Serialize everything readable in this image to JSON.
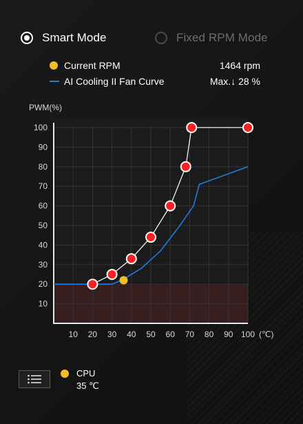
{
  "modes": {
    "smart_label": "Smart Mode",
    "fixed_label": "Fixed RPM Mode",
    "selected": "smart"
  },
  "legend": {
    "current_rpm_label": "Current RPM",
    "current_rpm_value": "1464 rpm",
    "curve_label": "AI Cooling II Fan Curve",
    "curve_value": "Max.↓ 28 %"
  },
  "sensor": {
    "name": "CPU",
    "temperature": "35 ℃"
  },
  "colors": {
    "accent_red": "#ff2020",
    "current_rpm_yellow": "#f0c020",
    "ai_curve_blue": "#1e7be0",
    "low_zone": "#3c2020"
  },
  "icons": {
    "menu_button": "list-menu-icon"
  },
  "chart_data": {
    "type": "line",
    "ylabel": "PWM(%)",
    "xlabel": "(℃)",
    "xlim": [
      0,
      100
    ],
    "ylim": [
      0,
      100
    ],
    "x_ticks": [
      "10",
      "20",
      "30",
      "40",
      "50",
      "60",
      "70",
      "80",
      "90",
      "100"
    ],
    "y_ticks": [
      "10",
      "20",
      "30",
      "40",
      "50",
      "60",
      "70",
      "80",
      "90",
      "100"
    ],
    "grid": true,
    "low_zone_max": 20,
    "series": [
      {
        "name": "Fan Curve",
        "role": "user",
        "points": [
          [
            20,
            20
          ],
          [
            30,
            25
          ],
          [
            40,
            33
          ],
          [
            50,
            44
          ],
          [
            60,
            60
          ],
          [
            68,
            80
          ],
          [
            71,
            100
          ],
          [
            100,
            100
          ]
        ],
        "left_extension_y": 20
      },
      {
        "name": "AI Cooling II Fan Curve",
        "role": "ai",
        "points": [
          [
            0,
            20
          ],
          [
            20,
            20
          ],
          [
            30,
            20
          ],
          [
            35,
            22
          ],
          [
            45,
            28
          ],
          [
            55,
            37
          ],
          [
            65,
            50
          ],
          [
            72,
            60
          ],
          [
            75,
            71
          ],
          [
            100,
            80
          ]
        ]
      }
    ],
    "current_point": {
      "name": "Current RPM",
      "x": 36,
      "y": 22
    }
  }
}
